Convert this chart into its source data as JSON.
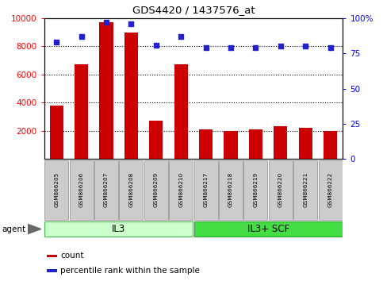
{
  "title": "GDS4420 / 1437576_at",
  "samples": [
    "GSM866205",
    "GSM866206",
    "GSM866207",
    "GSM866208",
    "GSM866209",
    "GSM866210",
    "GSM866217",
    "GSM866218",
    "GSM866219",
    "GSM866220",
    "GSM866221",
    "GSM866222"
  ],
  "counts": [
    3800,
    6700,
    9700,
    9000,
    2700,
    6700,
    2100,
    2000,
    2100,
    2300,
    2200,
    2000
  ],
  "percentiles": [
    83,
    87,
    97,
    96,
    81,
    87,
    79,
    79,
    79,
    80,
    80,
    79
  ],
  "groups": [
    {
      "label": "IL3",
      "start": 0,
      "end": 6,
      "color": "#ccffcc",
      "edgecolor": "#44bb44"
    },
    {
      "label": "IL3+ SCF",
      "start": 6,
      "end": 12,
      "color": "#44dd44",
      "edgecolor": "#22aa22"
    }
  ],
  "bar_color": "#cc0000",
  "dot_color": "#2222cc",
  "ylim_left": [
    0,
    10000
  ],
  "ylim_right": [
    0,
    100
  ],
  "yticks_left": [
    2000,
    4000,
    6000,
    8000,
    10000
  ],
  "yticks_right": [
    0,
    25,
    50,
    75,
    100
  ],
  "ytick_labels_right": [
    "0",
    "25",
    "50",
    "75",
    "100%"
  ],
  "grid_values": [
    2000,
    4000,
    6000,
    8000
  ],
  "background_color": "#ffffff",
  "bar_width": 0.55,
  "agent_label": "agent",
  "legend": [
    {
      "color": "#cc0000",
      "label": "count"
    },
    {
      "color": "#2222cc",
      "label": "percentile rank within the sample"
    }
  ],
  "sample_box_color": "#cccccc",
  "sample_box_edge": "#888888"
}
